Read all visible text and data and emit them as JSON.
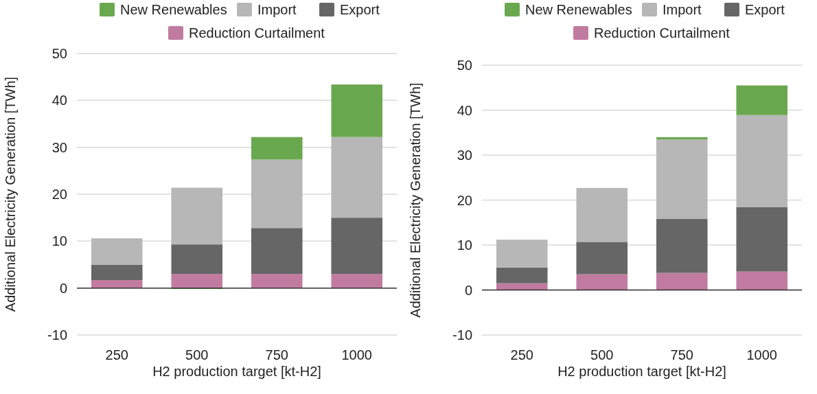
{
  "chart_data": [
    {
      "type": "bar",
      "stacked": true,
      "xlabel": "H2 production target [kt-H2]",
      "ylabel": "Additional Electricity Generation [TWh]",
      "categories": [
        "250",
        "500",
        "750",
        "1000"
      ],
      "ylim": [
        -10,
        50
      ],
      "yticks": [
        -10,
        0,
        10,
        20,
        30,
        40,
        50
      ],
      "grid": "y",
      "legend": "top",
      "series": [
        {
          "name": "Reduction Curtailment",
          "color": "#c27ba0",
          "values": [
            1.7,
            3.0,
            3.0,
            3.0
          ]
        },
        {
          "name": "Export",
          "color": "#666666",
          "values": [
            3.3,
            6.3,
            9.8,
            12.0
          ]
        },
        {
          "name": "Import",
          "color": "#b7b7b7",
          "values": [
            5.6,
            12.1,
            14.6,
            17.2
          ]
        },
        {
          "name": "New Renewables",
          "color": "#6aa84f",
          "values": [
            0,
            -0.2,
            4.8,
            11.2
          ]
        }
      ]
    },
    {
      "type": "bar",
      "stacked": true,
      "xlabel": "H2 production target [kt-H2]",
      "ylabel": "Additional Electricity Generation [TWh]",
      "categories": [
        "250",
        "500",
        "750",
        "1000"
      ],
      "ylim": [
        -10,
        50
      ],
      "yticks": [
        -10,
        0,
        10,
        20,
        30,
        40,
        50
      ],
      "grid": "y",
      "legend": "top",
      "series": [
        {
          "name": "Reduction Curtailment",
          "color": "#c27ba0",
          "values": [
            1.5,
            3.5,
            3.8,
            4.1
          ]
        },
        {
          "name": "Export",
          "color": "#666666",
          "values": [
            3.5,
            7.2,
            12.0,
            14.3
          ]
        },
        {
          "name": "Import",
          "color": "#b7b7b7",
          "values": [
            6.2,
            12.0,
            17.7,
            20.5
          ]
        },
        {
          "name": "New Renewables",
          "color": "#6aa84f",
          "values": [
            0,
            0,
            0.5,
            6.6
          ]
        }
      ]
    }
  ]
}
